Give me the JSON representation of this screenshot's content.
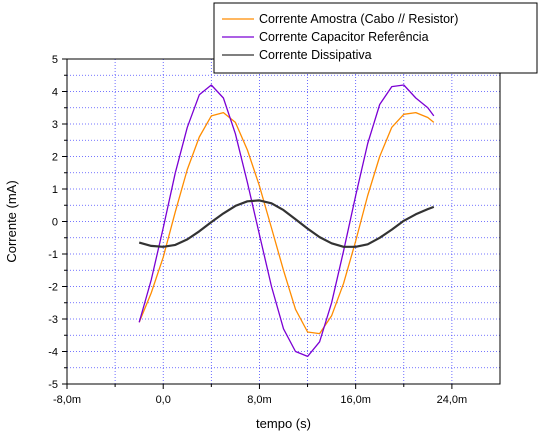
{
  "chart_data": {
    "type": "line",
    "xlabel": "tempo (s)",
    "ylabel": "Corrente (mA)",
    "xlim": [
      -8,
      28
    ],
    "ylim": [
      -5,
      5
    ],
    "x_ticks": [
      -8,
      0,
      8,
      16,
      24
    ],
    "x_tick_labels": [
      "-8,0m",
      "0,0",
      "8,0m",
      "16,0m",
      "24,0m"
    ],
    "y_ticks": [
      -5,
      -4,
      -3,
      -2,
      -1,
      0,
      1,
      2,
      3,
      4,
      5
    ],
    "y_tick_labels": [
      "-5",
      "-4",
      "-3",
      "-2",
      "-1",
      "0",
      "1",
      "2",
      "3",
      "4",
      "5"
    ],
    "grid": true,
    "legend_position": "top-right",
    "colors": {
      "grid": "#4a4aff",
      "axis": "#000000"
    },
    "series": [
      {
        "name": "Corrente Amostra (Cabo // Resistor)",
        "color": "#ff8c00",
        "x": [
          -2.0,
          -1.0,
          0.0,
          1.0,
          2.0,
          3.0,
          4.0,
          5.0,
          6.0,
          7.0,
          8.0,
          9.0,
          10.0,
          11.0,
          12.0,
          13.0,
          14.0,
          15.0,
          16.0,
          17.0,
          18.0,
          19.0,
          20.0,
          21.0,
          22.0,
          22.5
        ],
        "y": [
          -3.1,
          -2.2,
          -1.1,
          0.3,
          1.6,
          2.6,
          3.25,
          3.35,
          3.05,
          2.2,
          1.1,
          -0.2,
          -1.5,
          -2.7,
          -3.4,
          -3.45,
          -2.9,
          -1.9,
          -0.6,
          0.8,
          2.0,
          2.9,
          3.3,
          3.35,
          3.2,
          3.05
        ]
      },
      {
        "name": "Corrente Capacitor Referência",
        "color": "#7b00d4",
        "x": [
          -2.0,
          -1.0,
          0.0,
          1.0,
          2.0,
          3.0,
          4.0,
          5.0,
          6.0,
          7.0,
          8.0,
          9.0,
          10.0,
          11.0,
          12.0,
          13.0,
          14.0,
          15.0,
          16.0,
          17.0,
          18.0,
          19.0,
          20.0,
          21.0,
          22.0,
          22.5
        ],
        "y": [
          -3.1,
          -1.8,
          -0.2,
          1.5,
          2.9,
          3.9,
          4.2,
          3.8,
          2.7,
          1.2,
          -0.4,
          -2.0,
          -3.3,
          -4.0,
          -4.15,
          -3.7,
          -2.5,
          -0.9,
          0.8,
          2.4,
          3.6,
          4.15,
          4.2,
          3.8,
          3.5,
          3.25
        ]
      },
      {
        "name": "Corrente Dissipativa",
        "color": "#333333",
        "x": [
          -2.0,
          -1.0,
          0.0,
          1.0,
          2.0,
          3.0,
          4.0,
          5.0,
          6.0,
          7.0,
          8.0,
          9.0,
          10.0,
          11.0,
          12.0,
          13.0,
          14.0,
          15.0,
          16.0,
          17.0,
          18.0,
          19.0,
          20.0,
          21.0,
          22.0,
          22.5
        ],
        "y": [
          -0.65,
          -0.75,
          -0.78,
          -0.72,
          -0.55,
          -0.3,
          -0.02,
          0.25,
          0.48,
          0.62,
          0.65,
          0.56,
          0.35,
          0.07,
          -0.22,
          -0.48,
          -0.67,
          -0.78,
          -0.78,
          -0.7,
          -0.5,
          -0.25,
          0.02,
          0.22,
          0.38,
          0.45
        ]
      }
    ]
  }
}
